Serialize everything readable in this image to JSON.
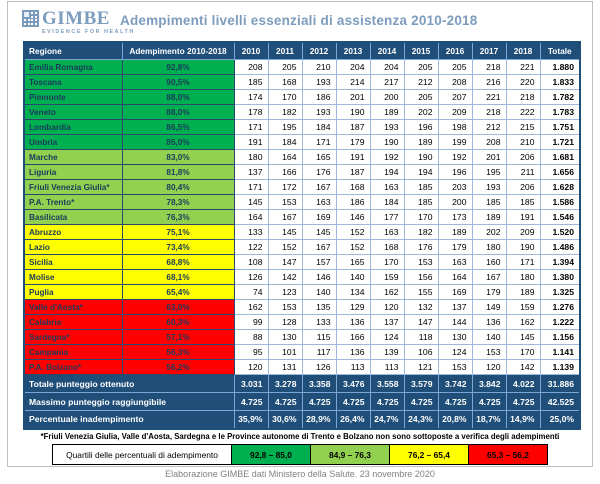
{
  "header": {
    "logo_name": "GIMBE",
    "logo_tagline": "EVIDENCE FOR HEALTH",
    "title": "Adempimenti livelli essenziali di assistenza 2010-2018"
  },
  "chart_data": {
    "type": "table",
    "title": "Adempimenti livelli essenziali di assistenza 2010-2018",
    "columns": [
      "Regione",
      "Adempimento 2010-2018",
      "2010",
      "2011",
      "2012",
      "2013",
      "2014",
      "2015",
      "2016",
      "2017",
      "2018",
      "Totale"
    ],
    "rows": [
      {
        "region": "Emilia Romagna",
        "adempimento": "92,8%",
        "tier": "green_dark",
        "values": [
          "208",
          "205",
          "210",
          "204",
          "204",
          "205",
          "205",
          "218",
          "221"
        ],
        "total": "1.880"
      },
      {
        "region": "Toscana",
        "adempimento": "90,5%",
        "tier": "green_dark",
        "values": [
          "185",
          "168",
          "193",
          "214",
          "217",
          "212",
          "208",
          "216",
          "220"
        ],
        "total": "1.833"
      },
      {
        "region": "Piemonte",
        "adempimento": "88,0%",
        "tier": "green_dark",
        "values": [
          "174",
          "170",
          "186",
          "201",
          "200",
          "205",
          "207",
          "221",
          "218"
        ],
        "total": "1.782"
      },
      {
        "region": "Veneto",
        "adempimento": "88,0%",
        "tier": "green_dark",
        "values": [
          "178",
          "182",
          "193",
          "190",
          "189",
          "202",
          "209",
          "218",
          "222"
        ],
        "total": "1.783"
      },
      {
        "region": "Lombardia",
        "adempimento": "86,5%",
        "tier": "green_dark",
        "values": [
          "171",
          "195",
          "184",
          "187",
          "193",
          "196",
          "198",
          "212",
          "215"
        ],
        "total": "1.751"
      },
      {
        "region": "Umbria",
        "adempimento": "85,0%",
        "tier": "green_dark",
        "values": [
          "191",
          "184",
          "171",
          "179",
          "190",
          "189",
          "199",
          "208",
          "210"
        ],
        "total": "1.721"
      },
      {
        "region": "Marche",
        "adempimento": "83,0%",
        "tier": "green_light",
        "values": [
          "180",
          "164",
          "165",
          "191",
          "192",
          "190",
          "192",
          "201",
          "206"
        ],
        "total": "1.681"
      },
      {
        "region": "Liguria",
        "adempimento": "81,8%",
        "tier": "green_light",
        "values": [
          "137",
          "166",
          "176",
          "187",
          "194",
          "194",
          "196",
          "195",
          "211"
        ],
        "total": "1.656"
      },
      {
        "region": "Friuli Venezia Giulia*",
        "adempimento": "80,4%",
        "tier": "green_light",
        "values": [
          "171",
          "172",
          "167",
          "168",
          "163",
          "185",
          "203",
          "193",
          "206"
        ],
        "total": "1.628"
      },
      {
        "region": "P.A. Trento*",
        "adempimento": "78,3%",
        "tier": "green_light",
        "values": [
          "145",
          "153",
          "163",
          "186",
          "184",
          "185",
          "200",
          "185",
          "185"
        ],
        "total": "1.586"
      },
      {
        "region": "Basilicata",
        "adempimento": "76,3%",
        "tier": "green_light",
        "values": [
          "164",
          "167",
          "169",
          "146",
          "177",
          "170",
          "173",
          "189",
          "191"
        ],
        "total": "1.546"
      },
      {
        "region": "Abruzzo",
        "adempimento": "75,1%",
        "tier": "yellow",
        "values": [
          "133",
          "145",
          "145",
          "152",
          "163",
          "182",
          "189",
          "202",
          "209"
        ],
        "total": "1.520"
      },
      {
        "region": "Lazio",
        "adempimento": "73,4%",
        "tier": "yellow",
        "values": [
          "122",
          "152",
          "167",
          "152",
          "168",
          "176",
          "179",
          "180",
          "190"
        ],
        "total": "1.486"
      },
      {
        "region": "Sicilia",
        "adempimento": "68,8%",
        "tier": "yellow",
        "values": [
          "108",
          "147",
          "157",
          "165",
          "170",
          "153",
          "163",
          "160",
          "171"
        ],
        "total": "1.394"
      },
      {
        "region": "Molise",
        "adempimento": "68,1%",
        "tier": "yellow",
        "values": [
          "126",
          "142",
          "146",
          "140",
          "159",
          "156",
          "164",
          "167",
          "180"
        ],
        "total": "1.380"
      },
      {
        "region": "Puglia",
        "adempimento": "65,4%",
        "tier": "yellow",
        "values": [
          "74",
          "123",
          "140",
          "134",
          "162",
          "155",
          "169",
          "179",
          "189"
        ],
        "total": "1.325"
      },
      {
        "region": "Valle d'Aosta*",
        "adempimento": "63,0%",
        "tier": "red",
        "values": [
          "162",
          "153",
          "135",
          "129",
          "120",
          "132",
          "137",
          "149",
          "159"
        ],
        "total": "1.276"
      },
      {
        "region": "Calabria",
        "adempimento": "60,3%",
        "tier": "red",
        "values": [
          "99",
          "128",
          "133",
          "136",
          "137",
          "147",
          "144",
          "136",
          "162"
        ],
        "total": "1.222"
      },
      {
        "region": "Sardegna*",
        "adempimento": "57,1%",
        "tier": "red",
        "values": [
          "88",
          "130",
          "115",
          "166",
          "124",
          "118",
          "130",
          "140",
          "145"
        ],
        "total": "1.156"
      },
      {
        "region": "Campania",
        "adempimento": "56,3%",
        "tier": "red",
        "values": [
          "95",
          "101",
          "117",
          "136",
          "139",
          "106",
          "124",
          "153",
          "170"
        ],
        "total": "1.141"
      },
      {
        "region": "P.A. Bolzano*",
        "adempimento": "56,2%",
        "tier": "red",
        "values": [
          "120",
          "131",
          "126",
          "113",
          "113",
          "121",
          "153",
          "120",
          "142"
        ],
        "total": "1.139"
      }
    ],
    "summary_rows": [
      {
        "label": "Totale punteggio ottenuto",
        "values": [
          "3.031",
          "3.278",
          "3.358",
          "3.476",
          "3.558",
          "3.579",
          "3.742",
          "3.842",
          "4.022"
        ],
        "total": "31.886"
      },
      {
        "label": "Massimo punteggio raggiungibile",
        "values": [
          "4.725",
          "4.725",
          "4.725",
          "4.725",
          "4.725",
          "4.725",
          "4.725",
          "4.725",
          "4.725"
        ],
        "total": "42.525"
      },
      {
        "label": "Percentuale inadempimento",
        "values": [
          "35,9%",
          "30,6%",
          "28,9%",
          "26,4%",
          "24,7%",
          "24,3%",
          "20,8%",
          "18,7%",
          "14,9%"
        ],
        "total": "25,0%"
      }
    ]
  },
  "footnote": "*Friuli Venezia Giulia, Valle d'Aosta, Sardegna e le Province autonome di Trento e Bolzano non sono sottoposte a verifica degli adempimenti",
  "legend": {
    "label": "Quartili delle percentuali di adempimento",
    "bins": [
      {
        "range": "92,8 – 85,0",
        "tier": "green_dark"
      },
      {
        "range": "84,9 – 76,3",
        "tier": "green_light"
      },
      {
        "range": "76,2 – 65,4",
        "tier": "yellow"
      },
      {
        "range": "65,3 – 56,2",
        "tier": "red"
      }
    ]
  },
  "caption": "Elaborazione GIMBE dati Ministero della Salute. 23 novembre 2020",
  "colors": {
    "navy": "#1f4e79",
    "green_dark": "#00b050",
    "green_light": "#92d050",
    "yellow": "#ffff00",
    "red": "#ff0000",
    "brand_blue": "#7c9cbe"
  }
}
